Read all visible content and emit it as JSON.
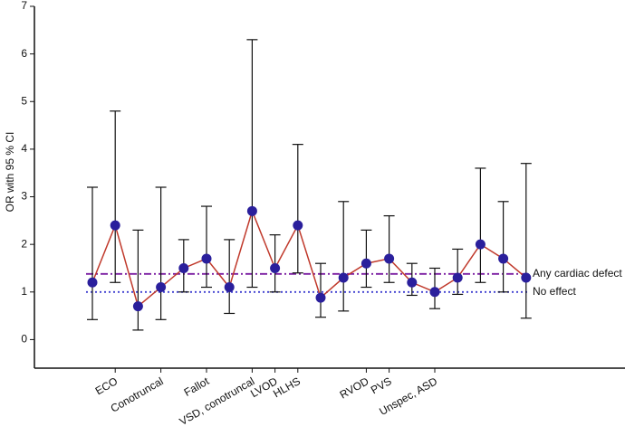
{
  "chart_data": {
    "type": "errorbar",
    "y_label": "OR with 95 % CI",
    "categories": [
      null,
      "ECO",
      null,
      "Conotruncal",
      null,
      "Fallot",
      null,
      "VSD, conotruncal",
      "LVOD",
      "HLHS",
      null,
      null,
      "RVOD",
      "PVS",
      null,
      "Unspec, ASD",
      null,
      null,
      null,
      null
    ],
    "series": [
      {
        "color": "#2a1f9c",
        "line_color": "#c0392b",
        "values": [
          1.2,
          2.4,
          0.7,
          1.1,
          1.5,
          1.7,
          1.1,
          2.7,
          1.5,
          2.4,
          0.88,
          1.3,
          1.6,
          1.7,
          1.2,
          1.0,
          1.3,
          2.0,
          1.7,
          1.3
        ],
        "lower": [
          0.42,
          1.2,
          0.2,
          0.42,
          1.0,
          1.1,
          0.55,
          1.1,
          1.0,
          1.4,
          0.47,
          0.6,
          1.1,
          1.2,
          0.93,
          0.65,
          0.95,
          1.2,
          1.0,
          0.45
        ],
        "upper": [
          3.2,
          4.8,
          2.3,
          3.2,
          2.1,
          2.8,
          2.1,
          6.3,
          2.2,
          4.1,
          1.6,
          2.9,
          2.3,
          2.6,
          1.6,
          1.5,
          1.9,
          3.6,
          2.9,
          3.7
        ]
      }
    ],
    "reference_lines": [
      {
        "label": "Any cardiac defect",
        "value": 1.38,
        "color": "#7b1fa2",
        "style": "dashdot"
      },
      {
        "label": "No effect",
        "value": 1.0,
        "color": "#3f3fd0",
        "style": "dotted"
      }
    ],
    "ylim": [
      -0.6,
      7
    ],
    "yticks": [
      0,
      1,
      2,
      3,
      4,
      5,
      6,
      7
    ]
  }
}
